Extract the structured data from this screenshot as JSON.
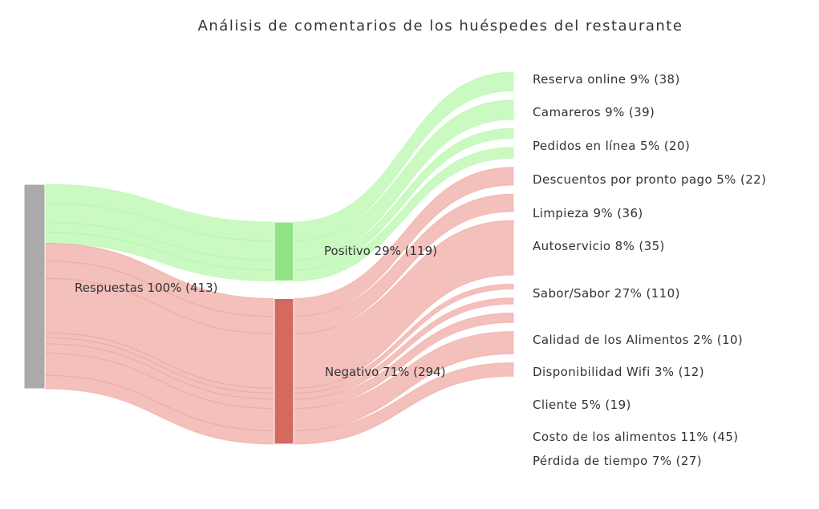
{
  "title": "Análisis de comentarios de los huéspedes del restaurante",
  "colors": {
    "source_node": "#aaaaaa",
    "positive_node": "#90e484",
    "negative_node": "#d46a5f",
    "positive_link": "#b3f8a8",
    "negative_link": "#eea59f"
  },
  "chart_data": {
    "type": "sankey",
    "title": "Análisis de comentarios de los huéspedes del restaurante",
    "nodes": [
      {
        "id": "respuestas",
        "label": "Respuestas 100% (413)",
        "value": 413
      },
      {
        "id": "positivo",
        "label": "Positivo 29% (119)",
        "value": 119
      },
      {
        "id": "negativo",
        "label": "Negativo 71% (294)",
        "value": 294
      },
      {
        "id": "reserva",
        "label": "Reserva online 9% (38)",
        "value": 38,
        "parent": "positivo"
      },
      {
        "id": "camareros",
        "label": "Camareros 9% (39)",
        "value": 39,
        "parent": "positivo"
      },
      {
        "id": "pedidos",
        "label": "Pedidos en línea 5% (20)",
        "value": 20,
        "parent": "positivo"
      },
      {
        "id": "descuentos",
        "label": "Descuentos por pronto pago 5% (22)",
        "value": 22,
        "parent": "positivo"
      },
      {
        "id": "limpieza",
        "label": "Limpieza 9% (36)",
        "value": 36,
        "parent": "negativo"
      },
      {
        "id": "autoservicio",
        "label": "Autoservicio 8% (35)",
        "value": 35,
        "parent": "negativo"
      },
      {
        "id": "sabor",
        "label": "Sabor/Sabor 27% (110)",
        "value": 110,
        "parent": "negativo"
      },
      {
        "id": "calidad",
        "label": "Calidad de los Alimentos 2% (10)",
        "value": 10,
        "parent": "negativo"
      },
      {
        "id": "wifi",
        "label": "Disponibilidad Wifi 3% (12)",
        "value": 12,
        "parent": "negativo"
      },
      {
        "id": "cliente",
        "label": "Cliente 5% (19)",
        "value": 19,
        "parent": "negativo"
      },
      {
        "id": "costo",
        "label": "Costo de los alimentos 11% (45)",
        "value": 45,
        "parent": "negativo"
      },
      {
        "id": "perdida",
        "label": "Pérdida de tiempo 7% (27)",
        "value": 27,
        "parent": "negativo"
      }
    ]
  }
}
